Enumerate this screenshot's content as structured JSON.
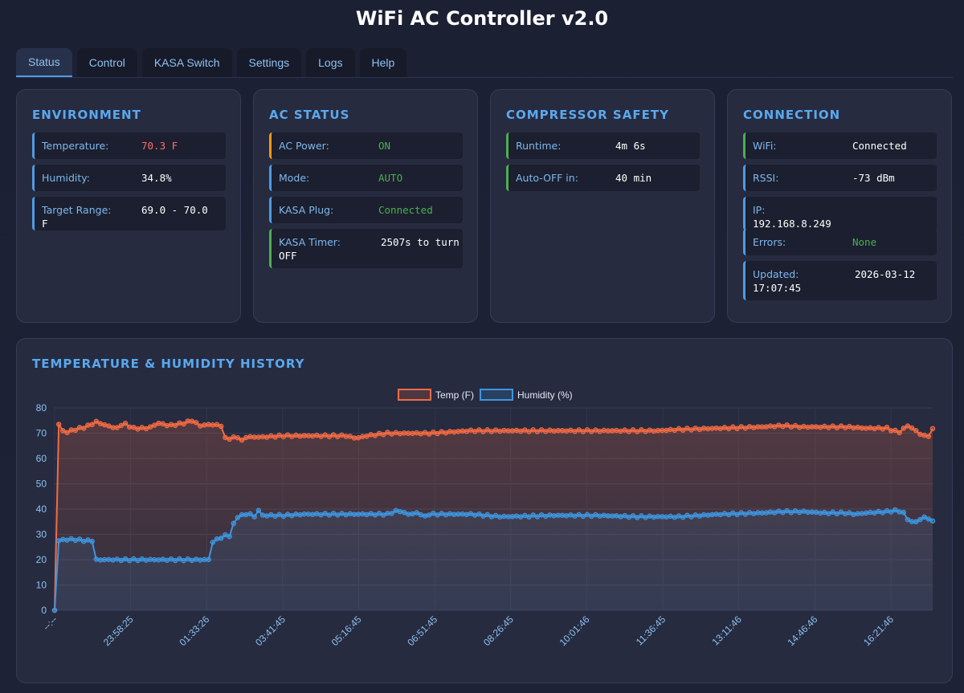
{
  "app": {
    "title": "WiFi AC Controller v2.0"
  },
  "tabs": [
    {
      "label": "Status",
      "active": true
    },
    {
      "label": "Control"
    },
    {
      "label": "KASA Switch"
    },
    {
      "label": "Settings"
    },
    {
      "label": "Logs"
    },
    {
      "label": "Help"
    }
  ],
  "environment": {
    "title": "ENVIRONMENT",
    "rows": [
      {
        "label": "Temperature:",
        "value": "70.3 F"
      },
      {
        "label": "Humidity:",
        "value": "34.8%"
      },
      {
        "label": "Target Range:",
        "value": "69.0 - 70.0 F"
      }
    ]
  },
  "ac_status": {
    "title": "AC STATUS",
    "rows": [
      {
        "label": "AC Power:",
        "value": "ON"
      },
      {
        "label": "Mode:",
        "value": "AUTO"
      },
      {
        "label": "KASA Plug:",
        "value": "Connected"
      },
      {
        "label": "KASA Timer:",
        "value": "2507s to turn",
        "value2": "OFF"
      }
    ]
  },
  "compressor": {
    "title": "COMPRESSOR SAFETY",
    "rows": [
      {
        "label": "Runtime:",
        "value": "4m 6s"
      },
      {
        "label": "Auto-OFF in:",
        "value": "40 min"
      }
    ]
  },
  "connection": {
    "title": "CONNECTION",
    "rows": [
      {
        "label": "WiFi:",
        "value": "Connected"
      },
      {
        "label": "RSSI:",
        "value": "-73 dBm"
      },
      {
        "label": "IP:",
        "value": "192.168.8.249"
      },
      {
        "label": "Errors:",
        "value": "None"
      },
      {
        "label": "Updated:",
        "value": "2026-03-12",
        "value2": "17:07:45"
      }
    ]
  },
  "colors": {
    "accent": "#5aa8ee",
    "temp_series": "#f26b43",
    "humidity_series": "#3e95de",
    "ok_green": "#4caf50",
    "warn_orange": "#ff9800",
    "alert_red": "#ff6b6b"
  },
  "history": {
    "title": "TEMPERATURE & HUMIDITY HISTORY",
    "chart_data": {
      "type": "line",
      "x_ticks": [
        "--:--",
        "23:58:25",
        "01:33:26",
        "03:41:45",
        "05:16:45",
        "06:51:45",
        "08:26:45",
        "10:01:46",
        "11:36:45",
        "13:11:46",
        "14:46:46",
        "16:21:46"
      ],
      "ylim": [
        0,
        80
      ],
      "y_ticks": [
        0,
        10,
        20,
        30,
        40,
        50,
        60,
        70,
        80
      ],
      "grid": true,
      "legend": "top-center",
      "series": [
        {
          "name": "Temp (F)",
          "points": [
            [
              0,
              0
            ],
            [
              1,
              75
            ],
            [
              2,
              73.5
            ],
            [
              3,
              71
            ],
            [
              6,
              70.5
            ],
            [
              10,
              71.5
            ],
            [
              15,
              72.5
            ],
            [
              20,
              74.5
            ],
            [
              25,
              73
            ],
            [
              30,
              72
            ],
            [
              33,
              74
            ],
            [
              38,
              72
            ],
            [
              45,
              72
            ],
            [
              50,
              74
            ],
            [
              55,
              73
            ],
            [
              62,
              74
            ],
            [
              66,
              75
            ],
            [
              70,
              73
            ],
            [
              75,
              73.5
            ],
            [
              80,
              73
            ],
            [
              81,
              69
            ],
            [
              82,
              68
            ],
            [
              85,
              68
            ],
            [
              88,
              68.5
            ],
            [
              90,
              67
            ],
            [
              92,
              68.5
            ],
            [
              100,
              68.5
            ],
            [
              110,
              69
            ],
            [
              120,
              69
            ],
            [
              140,
              69
            ],
            [
              145,
              68
            ],
            [
              150,
              69
            ],
            [
              160,
              70
            ],
            [
              180,
              70
            ],
            [
              200,
              71
            ],
            [
              230,
              71
            ],
            [
              260,
              71
            ],
            [
              290,
              71
            ],
            [
              300,
              71.5
            ],
            [
              320,
              72
            ],
            [
              340,
              72.5
            ],
            [
              350,
              73
            ],
            [
              360,
              72.5
            ],
            [
              370,
              72.5
            ],
            [
              380,
              72.5
            ],
            [
              390,
              72
            ],
            [
              400,
              72
            ],
            [
              403,
              71
            ],
            [
              406,
              70.5
            ],
            [
              410,
              73
            ],
            [
              414,
              71
            ],
            [
              417,
              69
            ],
            [
              420,
              69
            ],
            [
              422,
              71.5
            ]
          ]
        },
        {
          "name": "Humidity (%)",
          "points": [
            [
              0,
              0
            ],
            [
              1,
              27
            ],
            [
              2,
              27.5
            ],
            [
              5,
              28
            ],
            [
              10,
              28
            ],
            [
              15,
              27.5
            ],
            [
              18,
              27.5
            ],
            [
              19,
              20
            ],
            [
              30,
              20
            ],
            [
              60,
              20
            ],
            [
              75,
              20
            ],
            [
              76,
              27
            ],
            [
              78,
              28
            ],
            [
              82,
              29.5
            ],
            [
              85,
              29.5
            ],
            [
              86,
              34
            ],
            [
              88,
              37
            ],
            [
              92,
              38
            ],
            [
              95,
              38
            ],
            [
              96,
              37
            ],
            [
              98,
              39.5
            ],
            [
              100,
              37.5
            ],
            [
              110,
              37.5
            ],
            [
              120,
              38
            ],
            [
              140,
              38
            ],
            [
              160,
              38
            ],
            [
              165,
              39.5
            ],
            [
              170,
              38
            ],
            [
              175,
              38.5
            ],
            [
              178,
              37
            ],
            [
              180,
              38
            ],
            [
              200,
              38
            ],
            [
              215,
              37
            ],
            [
              240,
              37.5
            ],
            [
              260,
              37.5
            ],
            [
              280,
              37
            ],
            [
              300,
              37
            ],
            [
              310,
              37.5
            ],
            [
              320,
              38
            ],
            [
              340,
              38.5
            ],
            [
              350,
              39
            ],
            [
              360,
              39
            ],
            [
              370,
              38.5
            ],
            [
              380,
              38.5
            ],
            [
              385,
              38
            ],
            [
              390,
              38.5
            ],
            [
              400,
              39
            ],
            [
              405,
              39.5
            ],
            [
              408,
              38.5
            ],
            [
              410,
              36
            ],
            [
              413,
              34.5
            ],
            [
              416,
              36
            ],
            [
              419,
              37
            ],
            [
              422,
              35
            ]
          ]
        }
      ]
    }
  }
}
